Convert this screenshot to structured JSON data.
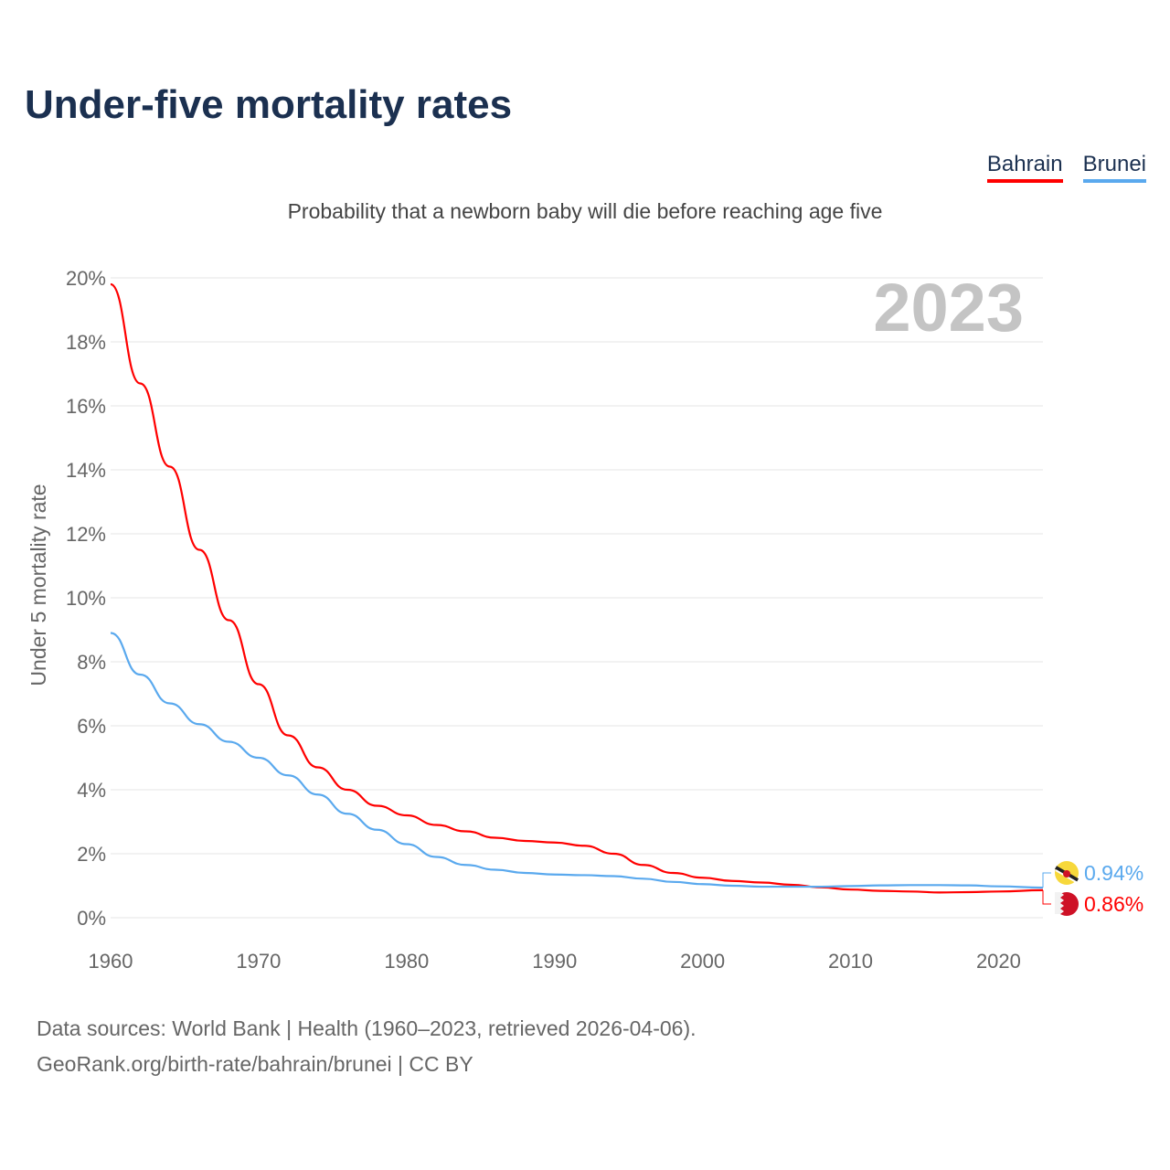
{
  "title": "Under-five mortality rates",
  "subtitle": "Probability that a newborn baby will die before reaching age five",
  "footer": {
    "line1": "Data sources: World Bank | Health (1960–2023, retrieved 2026-04-06).",
    "line2": "GeoRank.org/birth-rate/bahrain/brunei | CC BY"
  },
  "chart_data": {
    "type": "line",
    "title": "Under-five mortality rates",
    "ylabel": "Under 5 mortality rate",
    "xlabel": "",
    "year_label": "2023",
    "xlim": [
      1960,
      2023
    ],
    "ylim": [
      0,
      20
    ],
    "x_ticks": [
      "1960",
      "1970",
      "1980",
      "1990",
      "2000",
      "2010",
      "2020"
    ],
    "y_ticks": [
      "0%",
      "2%",
      "4%",
      "6%",
      "8%",
      "10%",
      "12%",
      "14%",
      "16%",
      "18%",
      "20%"
    ],
    "grid": true,
    "legend": "top-right",
    "x": [
      1960,
      1962,
      1964,
      1966,
      1968,
      1970,
      1972,
      1974,
      1976,
      1978,
      1980,
      1982,
      1984,
      1986,
      1988,
      1990,
      1992,
      1994,
      1996,
      1998,
      2000,
      2002,
      2004,
      2006,
      2008,
      2010,
      2012,
      2014,
      2016,
      2018,
      2020,
      2023
    ],
    "series": [
      {
        "name": "Bahrain",
        "color": "#ff0000",
        "end_label": "0.86%",
        "flag": "bahrain-flag",
        "values": [
          19.8,
          16.7,
          14.1,
          11.5,
          9.3,
          7.3,
          5.7,
          4.7,
          4.0,
          3.5,
          3.2,
          2.9,
          2.7,
          2.5,
          2.4,
          2.35,
          2.25,
          2.0,
          1.65,
          1.4,
          1.25,
          1.15,
          1.1,
          1.03,
          0.95,
          0.88,
          0.84,
          0.82,
          0.79,
          0.8,
          0.82,
          0.86
        ]
      },
      {
        "name": "Brunei",
        "color": "#5aa9ee",
        "end_label": "0.94%",
        "flag": "brunei-flag",
        "values": [
          8.9,
          7.6,
          6.7,
          6.05,
          5.5,
          5.0,
          4.45,
          3.85,
          3.25,
          2.75,
          2.3,
          1.9,
          1.65,
          1.5,
          1.4,
          1.35,
          1.33,
          1.3,
          1.22,
          1.12,
          1.05,
          1.0,
          0.97,
          0.97,
          0.97,
          0.99,
          1.01,
          1.02,
          1.02,
          1.01,
          0.98,
          0.94
        ]
      }
    ]
  }
}
